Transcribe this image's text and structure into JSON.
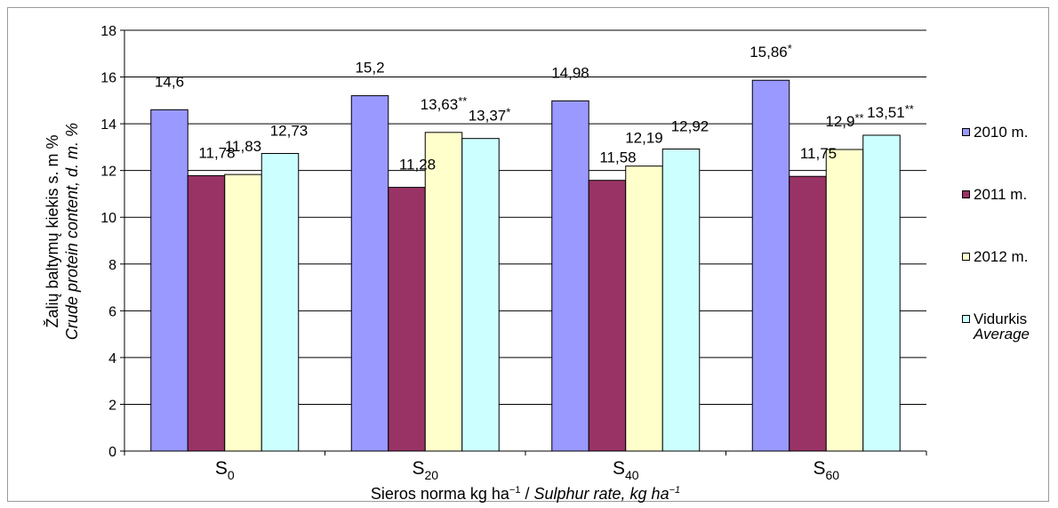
{
  "chart_data": {
    "type": "bar",
    "categories": [
      "S0",
      "S20",
      "S40",
      "S60"
    ],
    "category_labels": [
      {
        "base": "S",
        "sub": "0"
      },
      {
        "base": "S",
        "sub": "20"
      },
      {
        "base": "S",
        "sub": "40"
      },
      {
        "base": "S",
        "sub": "60"
      }
    ],
    "series": [
      {
        "name": "2010 m.",
        "color": "#9999ff",
        "values": [
          14.6,
          15.2,
          14.98,
          15.86
        ],
        "labels": [
          "14,6",
          "15,2",
          "14,98",
          "15,86*"
        ]
      },
      {
        "name": "2011 m.",
        "color": "#993366",
        "values": [
          11.78,
          11.28,
          11.58,
          11.75
        ],
        "labels": [
          "11,78",
          "11,28",
          "11,58",
          "11,75"
        ]
      },
      {
        "name": "2012 m.",
        "color": "#ffffcc",
        "values": [
          11.83,
          13.63,
          12.19,
          12.9
        ],
        "labels": [
          "11,83",
          "13,63**",
          "12,19",
          "12,9**"
        ]
      },
      {
        "name": "Vidurkis",
        "name_en": "Average",
        "color": "#ccffff",
        "values": [
          12.73,
          13.37,
          12.92,
          13.51
        ],
        "labels": [
          "12,73",
          "13,37*",
          "12,92",
          "13,51**"
        ]
      }
    ],
    "ylim": [
      0,
      18
    ],
    "yticks": [
      "0",
      "2",
      "4",
      "6",
      "8",
      "10",
      "12",
      "14",
      "16",
      "18"
    ],
    "grid": true,
    "legend_position": "right",
    "ylabel": {
      "line1": "Žalių baltymų kiekis s. m %",
      "line2": "Crude protein content, d. m. %"
    },
    "xlabel": {
      "lt": "Sieros norma kg ha",
      "lt_sup": "−1",
      "sep": " / ",
      "en": "Sulphur rate,  kg ha",
      "en_sup": "−1"
    }
  }
}
